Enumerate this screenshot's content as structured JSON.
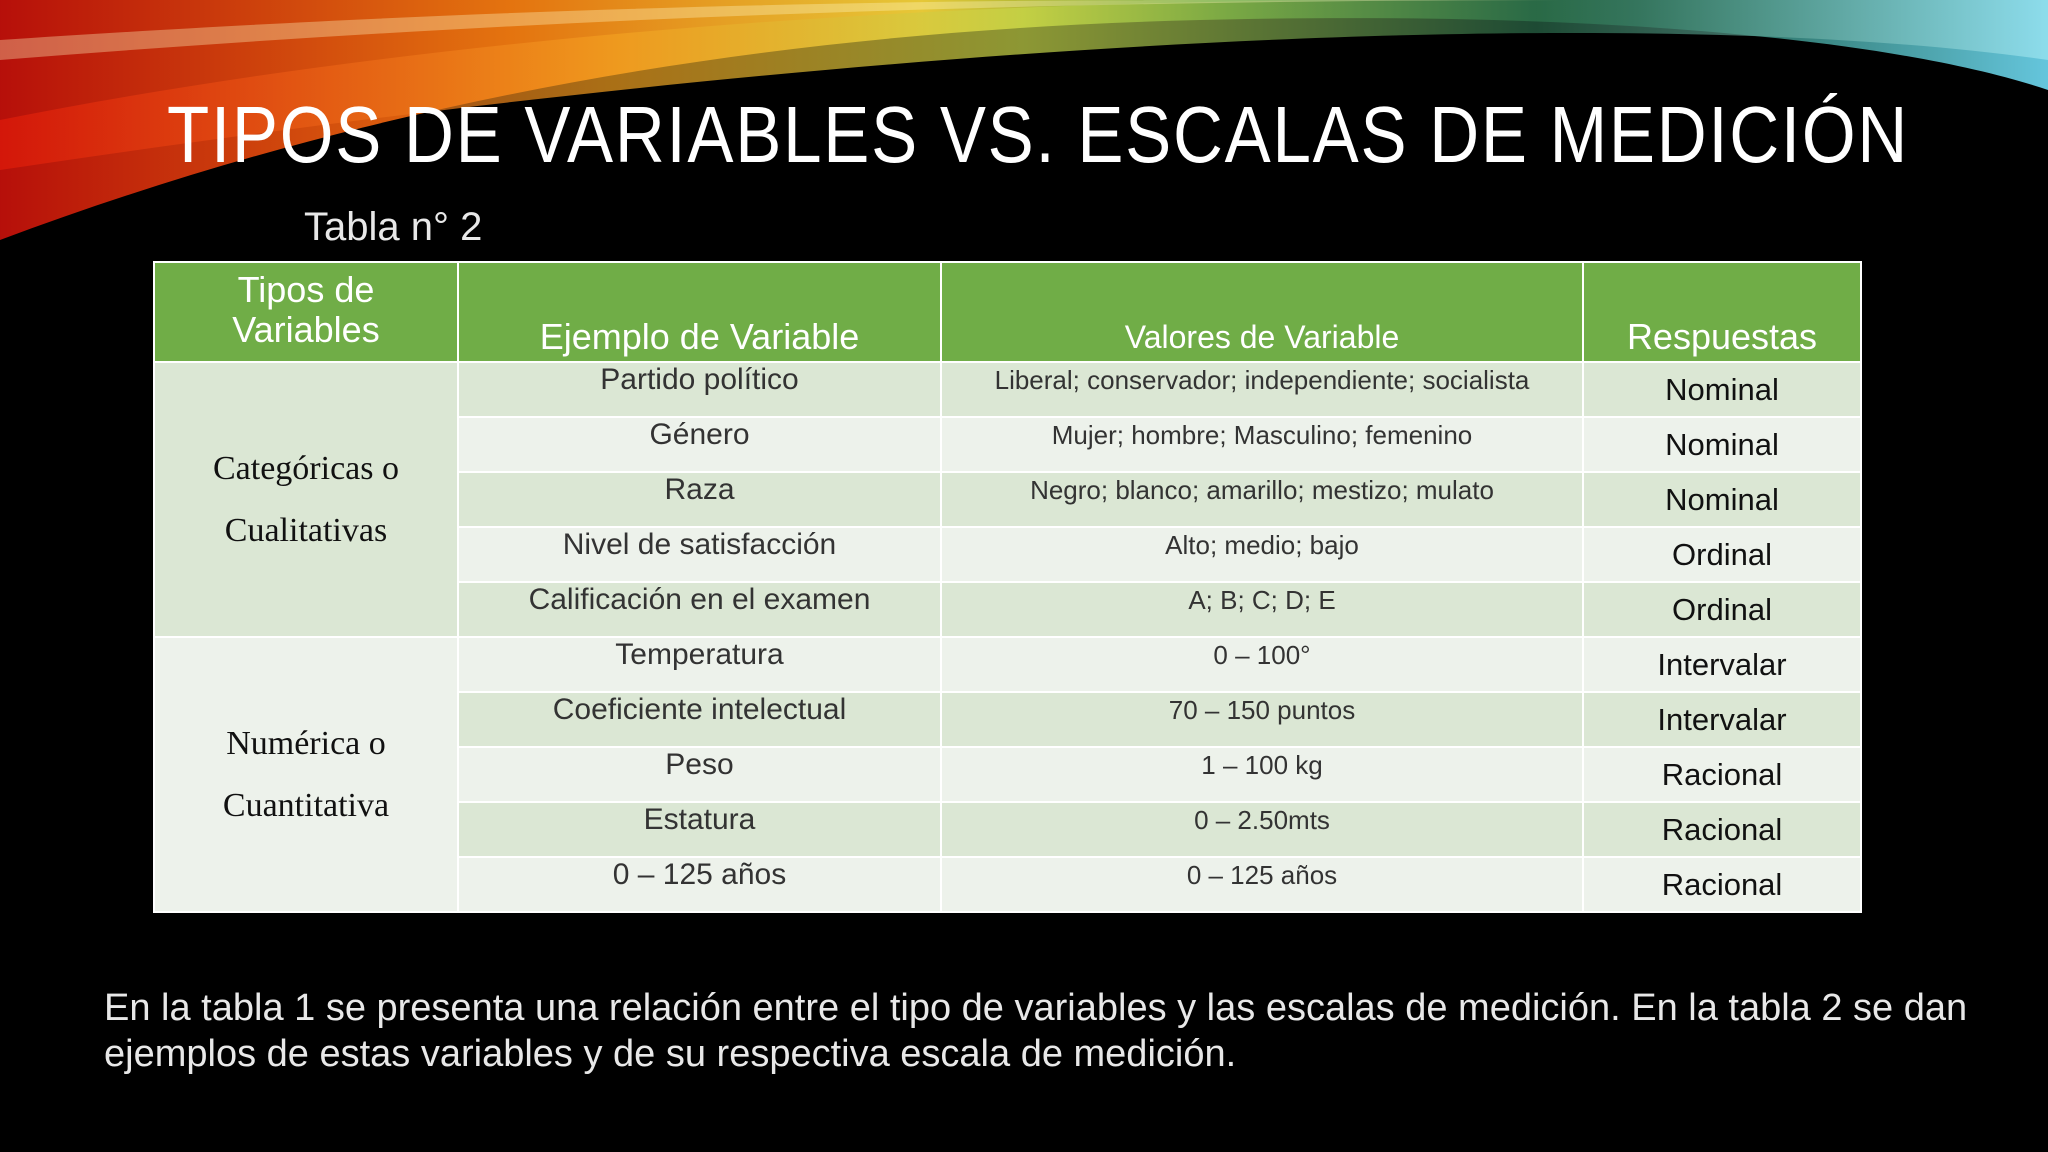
{
  "header": {
    "title": "TIPOS DE VARIABLES VS. ESCALAS DE MEDICIÓN"
  },
  "table": {
    "caption": "Tabla n° 2",
    "header": [
      "Tipos de Variables",
      "Ejemplo de Variable",
      "Valores de Variable",
      "Respuestas"
    ],
    "groups": [
      {
        "label": "Categóricas o Cualitativas",
        "rows": [
          [
            "Partido político",
            "Liberal; conservador; independiente; socialista",
            "Nominal"
          ],
          [
            "Género",
            "Mujer; hombre; Masculino; femenino",
            "Nominal"
          ],
          [
            "Raza",
            "Negro; blanco; amarillo; mestizo; mulato",
            "Nominal"
          ],
          [
            "Nivel de satisfacción",
            "Alto; medio; bajo",
            "Ordinal"
          ],
          [
            "Calificación en el examen",
            "A; B; C; D; E",
            "Ordinal"
          ]
        ]
      },
      {
        "label": "Numérica o Cuantitativa",
        "rows": [
          [
            "Temperatura",
            "0 – 100°",
            "Intervalar"
          ],
          [
            "Coeficiente intelectual",
            "70 – 150 puntos",
            "Intervalar"
          ],
          [
            "Peso",
            "1 – 100 kg",
            "Racional"
          ],
          [
            "Estatura",
            "0 – 2.50mts",
            "Racional"
          ],
          [
            "0 – 125 años",
            "0 – 125 años",
            "Racional"
          ]
        ]
      }
    ]
  },
  "body": {
    "text": "En la tabla 1 se presenta una relación entre el tipo de variables y las escalas de medición. En la tabla 2 se dan ejemplos de estas variables y de su respectiva escala de medición."
  }
}
